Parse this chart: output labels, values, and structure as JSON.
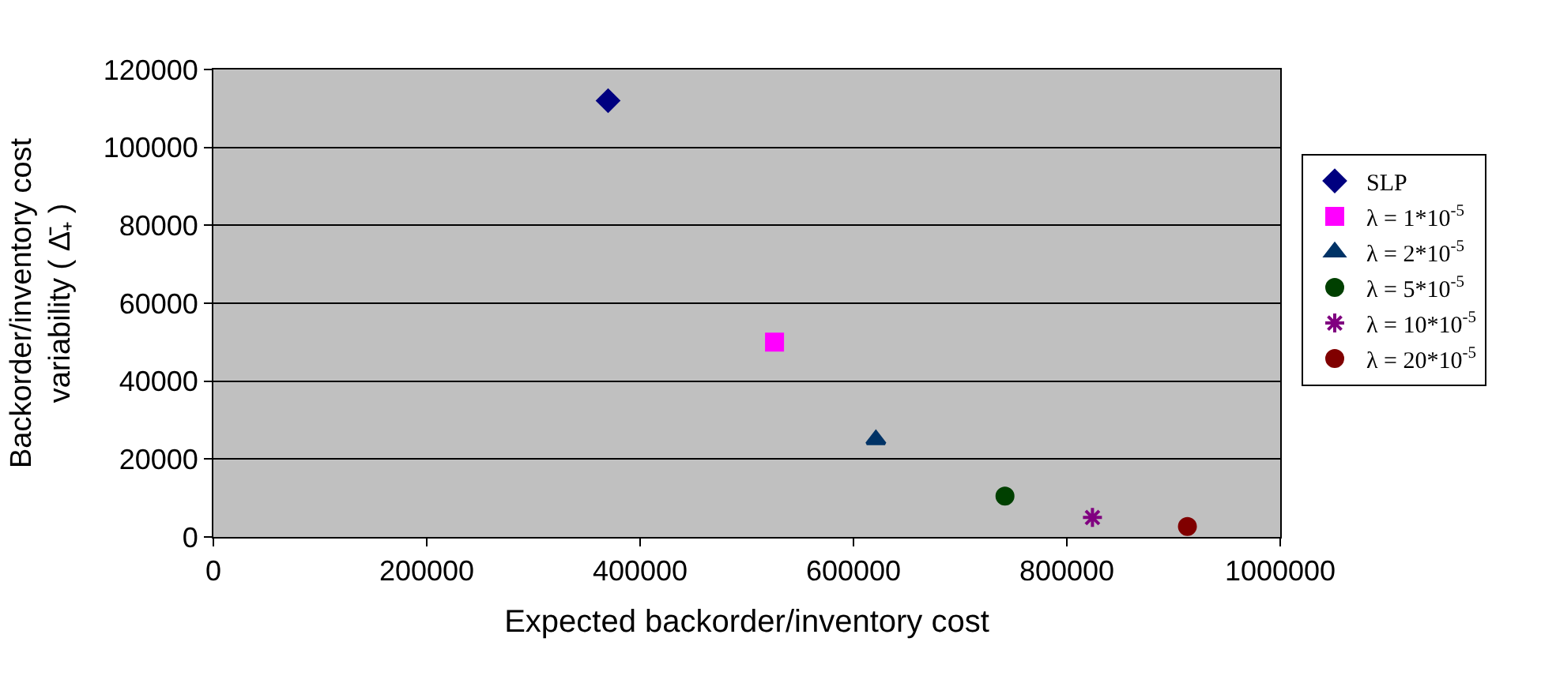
{
  "chart_data": {
    "type": "scatter",
    "xlabel": "Expected backorder/inventory cost",
    "ylabel": "Backorder/inventory cost\nvariability ( Δ̄₊ )",
    "xlim": [
      0,
      1000000
    ],
    "xticks": [
      0,
      200000,
      400000,
      600000,
      800000,
      1000000
    ],
    "ylim": [
      0,
      120000
    ],
    "yticks": [
      0,
      20000,
      40000,
      60000,
      80000,
      100000,
      120000
    ],
    "grid": "y",
    "legend": "right",
    "series": [
      {
        "name": "SLP",
        "color": "#000080",
        "marker": "diamond",
        "x": [
          370000
        ],
        "values": [
          112000
        ]
      },
      {
        "name": "λ = 1*10$^{-5}$",
        "color": "#ff00ff",
        "marker": "square",
        "x": [
          526000
        ],
        "values": [
          50000
        ]
      },
      {
        "name": "λ = 2*10$^{-5}$",
        "color": "#003366",
        "marker": "triangle",
        "x": [
          621000
        ],
        "values": [
          25000
        ]
      },
      {
        "name": "λ = 5*10$^{-5}$",
        "color": "#004000",
        "marker": "circle",
        "x": [
          742000
        ],
        "values": [
          10500
        ]
      },
      {
        "name": "λ = 10*10$^{-5}$",
        "color": "#800080",
        "marker": "cross",
        "x": [
          824000
        ],
        "values": [
          5000
        ]
      },
      {
        "name": "λ = 20*10$^{-5}$",
        "color": "#800000",
        "marker": "circle",
        "x": [
          913000
        ],
        "values": [
          2700
        ]
      }
    ]
  }
}
